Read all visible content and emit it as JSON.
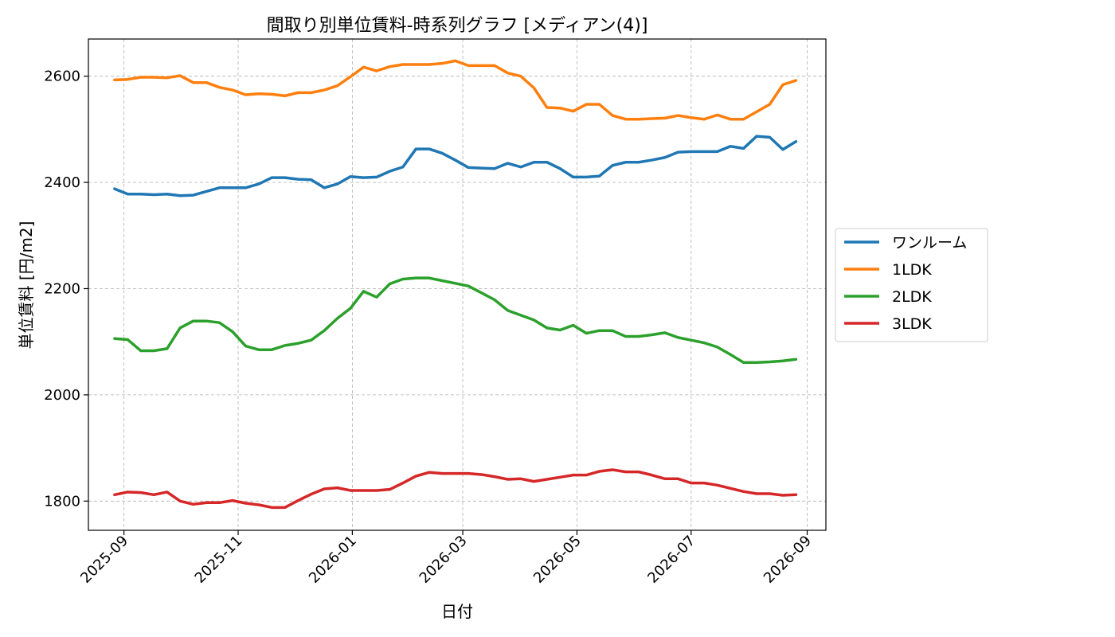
{
  "chart_data": {
    "type": "line",
    "title": "間取り別単位賃料-時系列グラフ [メディアン(4)]",
    "xlabel": "日付",
    "ylabel": "単位賃料 [円/m2]",
    "x_ticks": [
      "2025-09",
      "2025-11",
      "2026-01",
      "2026-03",
      "2026-05",
      "2026-07",
      "2026-09"
    ],
    "xlim": [
      "2025-08-13",
      "2026-09-11"
    ],
    "ylim": [
      1745,
      2670
    ],
    "y_ticks": [
      1800,
      2000,
      2200,
      2400,
      2600
    ],
    "grid": true,
    "legend_position": "center-right-outside",
    "x": [
      "2025-08-27",
      "2025-09-03",
      "2025-09-10",
      "2025-09-17",
      "2025-09-24",
      "2025-10-01",
      "2025-10-08",
      "2025-10-15",
      "2025-10-22",
      "2025-10-29",
      "2025-11-05",
      "2025-11-12",
      "2025-11-19",
      "2025-11-26",
      "2025-12-03",
      "2025-12-10",
      "2025-12-17",
      "2025-12-24",
      "2025-12-31",
      "2026-01-07",
      "2026-01-14",
      "2026-01-21",
      "2026-01-28",
      "2026-02-04",
      "2026-02-11",
      "2026-02-18",
      "2026-02-25",
      "2026-03-04",
      "2026-03-11",
      "2026-03-18",
      "2026-03-25",
      "2026-04-01",
      "2026-04-08",
      "2026-04-15",
      "2026-04-22",
      "2026-04-29",
      "2026-05-06",
      "2026-05-13",
      "2026-05-20",
      "2026-05-27",
      "2026-06-03",
      "2026-06-10",
      "2026-06-17",
      "2026-06-24",
      "2026-07-01",
      "2026-07-08",
      "2026-07-15",
      "2026-07-22",
      "2026-07-29",
      "2026-08-05",
      "2026-08-12",
      "2026-08-19",
      "2026-08-26"
    ],
    "series": [
      {
        "name": "ワンルーム",
        "color": "#1f77b4",
        "values": [
          2388,
          2378,
          2378,
          2377,
          2378,
          2375,
          2376,
          2383,
          2390,
          2390,
          2390,
          2397,
          2409,
          2409,
          2406,
          2405,
          2390,
          2397,
          2411,
          2409,
          2410,
          2421,
          2429,
          2463,
          2463,
          2455,
          2442,
          2428,
          2427,
          2426,
          2436,
          2429,
          2438,
          2438,
          2426,
          2410,
          2410,
          2412,
          2432,
          2438,
          2438,
          2442,
          2447,
          2457,
          2458,
          2458,
          2458,
          2468,
          2464,
          2487,
          2485,
          2462,
          2477
        ]
      },
      {
        "name": "1LDK",
        "color": "#ff7f0e",
        "values": [
          2593,
          2594,
          2598,
          2598,
          2597,
          2601,
          2588,
          2588,
          2579,
          2574,
          2565,
          2567,
          2566,
          2563,
          2569,
          2569,
          2574,
          2582,
          2599,
          2617,
          2610,
          2618,
          2622,
          2622,
          2622,
          2624,
          2629,
          2620,
          2620,
          2620,
          2606,
          2600,
          2578,
          2541,
          2540,
          2534,
          2547,
          2547,
          2526,
          2519,
          2519,
          2520,
          2521,
          2526,
          2522,
          2519,
          2527,
          2519,
          2519,
          2533,
          2547,
          2584,
          2592
        ]
      },
      {
        "name": "2LDK",
        "color": "#2ca02c",
        "values": [
          2106,
          2104,
          2083,
          2083,
          2087,
          2126,
          2139,
          2139,
          2136,
          2119,
          2092,
          2085,
          2085,
          2093,
          2097,
          2103,
          2121,
          2144,
          2163,
          2195,
          2184,
          2209,
          2218,
          2220,
          2220,
          2215,
          2210,
          2205,
          2192,
          2179,
          2159,
          2150,
          2141,
          2126,
          2122,
          2131,
          2116,
          2121,
          2121,
          2110,
          2110,
          2113,
          2117,
          2108,
          2103,
          2098,
          2090,
          2076,
          2061,
          2061,
          2062,
          2064,
          2067
        ]
      },
      {
        "name": "3LDK",
        "color": "#d62728",
        "values": [
          1812,
          1817,
          1816,
          1812,
          1817,
          1800,
          1794,
          1797,
          1797,
          1801,
          1796,
          1793,
          1788,
          1788,
          1801,
          1813,
          1823,
          1825,
          1820,
          1820,
          1820,
          1822,
          1834,
          1847,
          1854,
          1852,
          1852,
          1852,
          1850,
          1846,
          1841,
          1842,
          1837,
          1841,
          1845,
          1849,
          1849,
          1856,
          1859,
          1855,
          1855,
          1849,
          1842,
          1842,
          1834,
          1834,
          1830,
          1824,
          1818,
          1814,
          1814,
          1811,
          1812
        ]
      }
    ]
  }
}
